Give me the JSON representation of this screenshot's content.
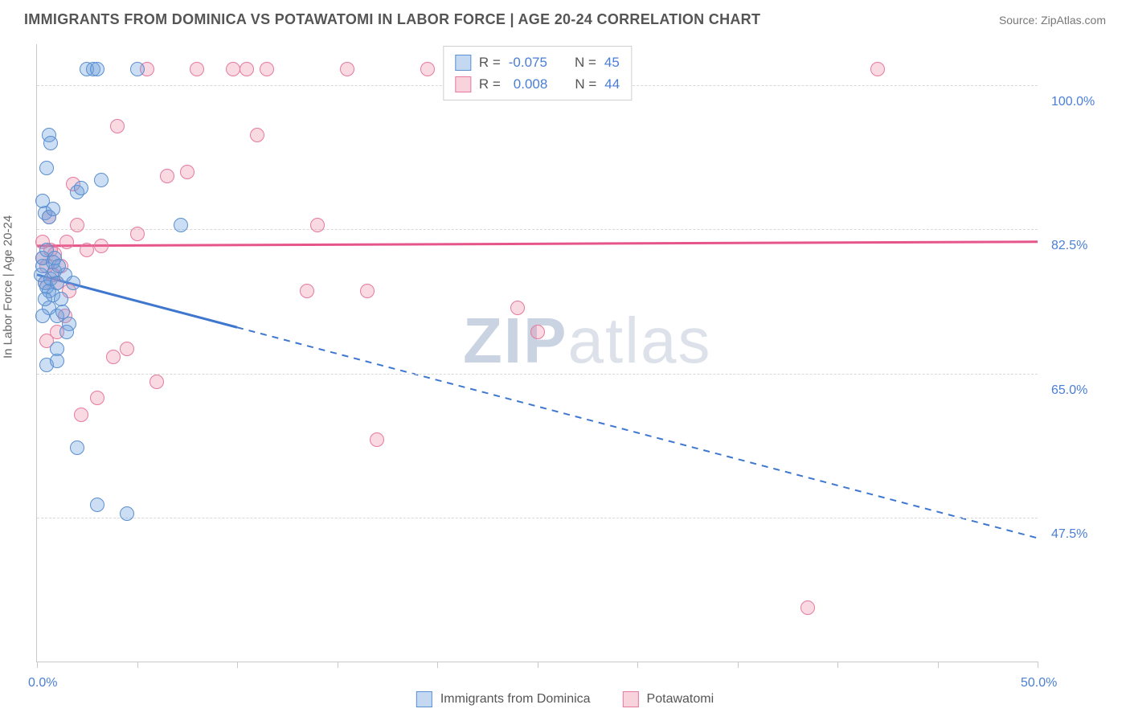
{
  "header": {
    "title": "IMMIGRANTS FROM DOMINICA VS POTAWATOMI IN LABOR FORCE | AGE 20-24 CORRELATION CHART",
    "source_label": "Source:",
    "source_name": "ZipAtlas.com"
  },
  "watermark": {
    "part1": "ZIP",
    "part2": "atlas"
  },
  "chart": {
    "type": "scatter",
    "background_color": "#ffffff",
    "grid_color": "#d8d8d8",
    "axis_color": "#c9c9c9",
    "xlim": [
      0,
      50
    ],
    "ylim": [
      30,
      105
    ],
    "y_ticks": [
      47.5,
      65.0,
      82.5,
      100.0
    ],
    "y_tick_labels": [
      "47.5%",
      "65.0%",
      "82.5%",
      "100.0%"
    ],
    "x_ticks": [
      0,
      5,
      10,
      15,
      20,
      25,
      30,
      35,
      40,
      45,
      50
    ],
    "x_tick_labels_shown": {
      "0": "0.0%",
      "50": "50.0%"
    },
    "y_axis_title": "In Labor Force | Age 20-24",
    "series": {
      "blue": {
        "label": "Immigrants from Dominica",
        "fill": "rgba(108,160,220,0.35)",
        "stroke": "#5a8fd0",
        "R": "-0.075",
        "N": "45",
        "trend": {
          "solid_until_x": 10,
          "y_at_x0": 77,
          "y_at_x50": 45,
          "color": "#3f77cf"
        },
        "points": [
          [
            0.2,
            77
          ],
          [
            0.3,
            78
          ],
          [
            0.4,
            76
          ],
          [
            0.5,
            75.5
          ],
          [
            0.6,
            75
          ],
          [
            0.7,
            76.5
          ],
          [
            0.8,
            74.5
          ],
          [
            0.9,
            77.5
          ],
          [
            0.3,
            79
          ],
          [
            0.5,
            80
          ],
          [
            0.6,
            73
          ],
          [
            0.4,
            74
          ],
          [
            0.8,
            78.5
          ],
          [
            1.0,
            76
          ],
          [
            1.2,
            74
          ],
          [
            1.4,
            77
          ],
          [
            0.4,
            84.5
          ],
          [
            0.6,
            84
          ],
          [
            0.8,
            85
          ],
          [
            1.0,
            72
          ],
          [
            1.3,
            72.5
          ],
          [
            1.6,
            71
          ],
          [
            2.0,
            87
          ],
          [
            2.2,
            87.5
          ],
          [
            0.5,
            90
          ],
          [
            1.0,
            68
          ],
          [
            1.5,
            70
          ],
          [
            2.5,
            102
          ],
          [
            2.8,
            102
          ],
          [
            3.0,
            102
          ],
          [
            3.2,
            88.5
          ],
          [
            0.6,
            94
          ],
          [
            2.0,
            56
          ],
          [
            3.0,
            49
          ],
          [
            4.5,
            48
          ],
          [
            5.0,
            102
          ],
          [
            7.2,
            83
          ],
          [
            0.5,
            66
          ],
          [
            1.0,
            66.5
          ],
          [
            0.3,
            72
          ],
          [
            0.9,
            79
          ],
          [
            1.8,
            76
          ],
          [
            1.1,
            78
          ],
          [
            0.7,
            93
          ],
          [
            0.3,
            86
          ]
        ]
      },
      "pink": {
        "label": "Potawatomi",
        "fill": "rgba(236,130,160,0.3)",
        "stroke": "#e67a9e",
        "R": "0.008",
        "N": "44",
        "trend": {
          "y_at_x0": 80.5,
          "y_at_x50": 81.0,
          "color": "#e6558a"
        },
        "points": [
          [
            0.3,
            79
          ],
          [
            0.5,
            78
          ],
          [
            0.7,
            80
          ],
          [
            0.9,
            79.5
          ],
          [
            1.2,
            78
          ],
          [
            1.5,
            81
          ],
          [
            0.4,
            76
          ],
          [
            0.8,
            77
          ],
          [
            1.0,
            76
          ],
          [
            1.6,
            75
          ],
          [
            2.0,
            83
          ],
          [
            2.5,
            80
          ],
          [
            3.2,
            80.5
          ],
          [
            4.5,
            68
          ],
          [
            5.0,
            82
          ],
          [
            5.5,
            102
          ],
          [
            6.0,
            64
          ],
          [
            6.5,
            89
          ],
          [
            7.5,
            89.5
          ],
          [
            8.0,
            102
          ],
          [
            9.8,
            102
          ],
          [
            10.5,
            102
          ],
          [
            11.0,
            94
          ],
          [
            11.5,
            102
          ],
          [
            13.5,
            75
          ],
          [
            14.0,
            83
          ],
          [
            15.5,
            102
          ],
          [
            16.5,
            75
          ],
          [
            17.0,
            57
          ],
          [
            19.5,
            102
          ],
          [
            24.0,
            73
          ],
          [
            25.0,
            70
          ],
          [
            38.5,
            36.5
          ],
          [
            42.0,
            102
          ],
          [
            0.5,
            69
          ],
          [
            1.0,
            70
          ],
          [
            1.4,
            72
          ],
          [
            3.8,
            67
          ],
          [
            0.6,
            84
          ],
          [
            1.8,
            88
          ],
          [
            2.2,
            60
          ],
          [
            3.0,
            62
          ],
          [
            4.0,
            95
          ],
          [
            0.3,
            81
          ]
        ]
      }
    }
  },
  "legend_top": {
    "R_label": "R =",
    "N_label": "N ="
  },
  "colors": {
    "tick_text": "#4a7fd6",
    "axis_title": "#666666"
  }
}
